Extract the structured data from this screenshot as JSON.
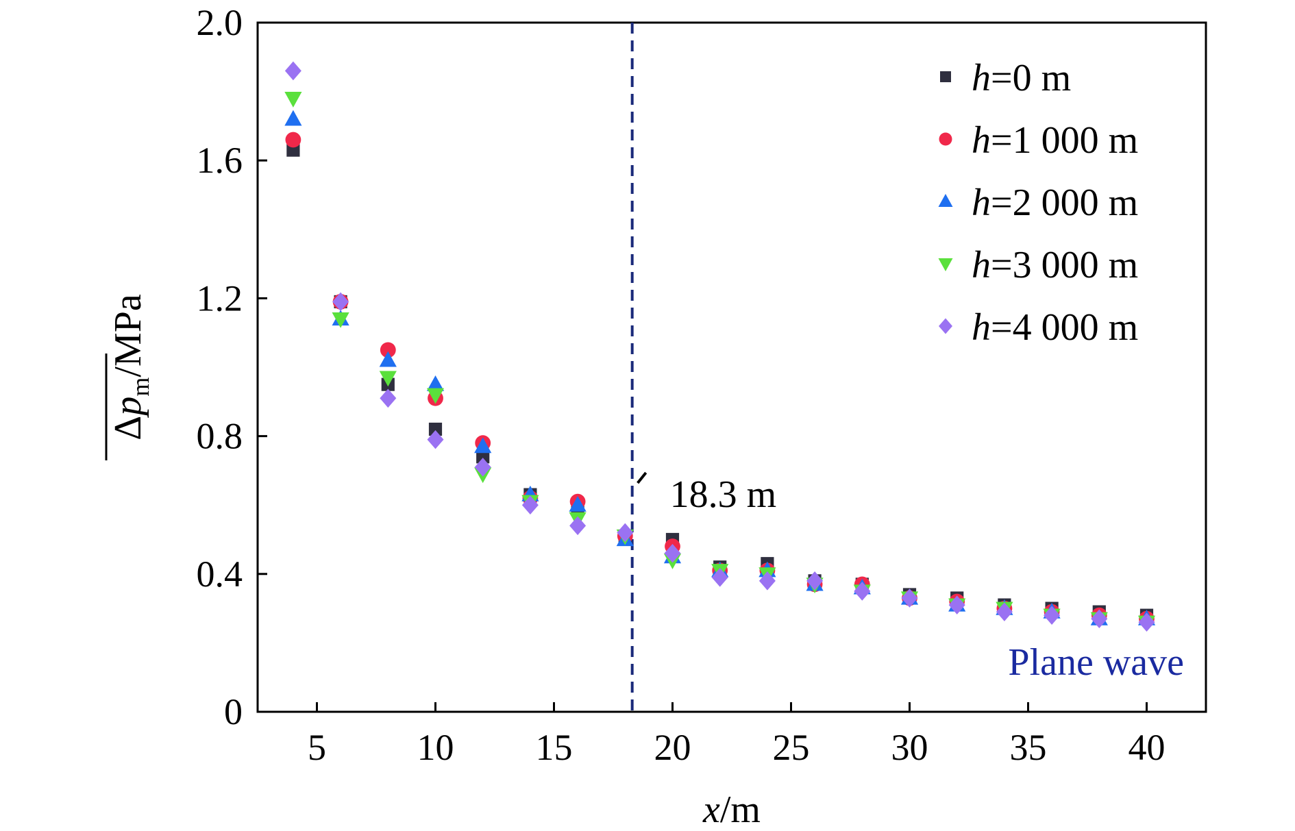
{
  "chart_data": {
    "type": "scatter",
    "title": "",
    "xlabel": "x/m",
    "xlabel_var": "x",
    "xlabel_unit": "/m",
    "ylabel": "Δp_m/MPa",
    "ylabel_delta": "Δ",
    "ylabel_var": "p",
    "ylabel_sub": "m",
    "ylabel_unit": "/MPa",
    "xlim": [
      2.5,
      42.5
    ],
    "ylim": [
      0,
      2.0
    ],
    "xticks": [
      5,
      10,
      15,
      20,
      25,
      30,
      35,
      40
    ],
    "xtick_labels": [
      "5",
      "10",
      "15",
      "20",
      "25",
      "30",
      "35",
      "40"
    ],
    "yticks": [
      0,
      0.4,
      0.8,
      1.2,
      1.6,
      2.0
    ],
    "ytick_labels": [
      "0",
      "0.4",
      "0.8",
      "1.2",
      "1.6",
      "2.0"
    ],
    "grid": false,
    "legend_position": "top-right",
    "x": [
      4,
      6,
      8,
      10,
      12,
      14,
      16,
      18,
      20,
      22,
      24,
      26,
      28,
      30,
      32,
      34,
      36,
      38,
      40
    ],
    "series": [
      {
        "name": "h=0 m",
        "name_var": "h",
        "name_rest": "=0 m",
        "marker": "square",
        "color": "#2f2f3f",
        "values": [
          1.63,
          1.19,
          0.95,
          0.82,
          0.74,
          0.63,
          0.59,
          0.51,
          0.5,
          0.42,
          0.43,
          0.38,
          0.37,
          0.34,
          0.33,
          0.31,
          0.3,
          0.29,
          0.28
        ]
      },
      {
        "name": "h=1 000 m",
        "name_var": "h",
        "name_rest": "=1 000 m",
        "marker": "circle",
        "color": "#f0284a",
        "values": [
          1.66,
          1.19,
          1.05,
          0.91,
          0.78,
          0.62,
          0.61,
          0.51,
          0.48,
          0.41,
          0.41,
          0.37,
          0.37,
          0.33,
          0.32,
          0.3,
          0.29,
          0.28,
          0.27
        ]
      },
      {
        "name": "h=2 000 m",
        "name_var": "h",
        "name_rest": "=2 000 m",
        "marker": "triangle-up",
        "color": "#1f6ff0",
        "values": [
          1.72,
          1.14,
          1.02,
          0.95,
          0.77,
          0.63,
          0.6,
          0.5,
          0.45,
          0.41,
          0.41,
          0.37,
          0.36,
          0.33,
          0.31,
          0.3,
          0.29,
          0.27,
          0.27
        ]
      },
      {
        "name": "h=3 000 m",
        "name_var": "h",
        "name_rest": "=3 000 m",
        "marker": "triangle-down",
        "color": "#5ae03c",
        "values": [
          1.78,
          1.14,
          0.97,
          0.92,
          0.69,
          0.61,
          0.56,
          0.51,
          0.44,
          0.41,
          0.4,
          0.37,
          0.35,
          0.33,
          0.31,
          0.3,
          0.28,
          0.27,
          0.26
        ]
      },
      {
        "name": "h=4 000 m",
        "name_var": "h",
        "name_rest": "=4 000 m",
        "marker": "diamond",
        "color": "#9a72f2",
        "values": [
          1.86,
          1.19,
          0.91,
          0.79,
          0.71,
          0.6,
          0.54,
          0.52,
          0.46,
          0.39,
          0.38,
          0.38,
          0.35,
          0.33,
          0.31,
          0.29,
          0.28,
          0.27,
          0.26
        ]
      }
    ],
    "annotations": {
      "vline_x": 18.3,
      "vline_color": "#1a2a7a",
      "vline_label": "18.3 m",
      "region_label": "Plane wave",
      "region_label_color": "#1a2aa0"
    }
  }
}
